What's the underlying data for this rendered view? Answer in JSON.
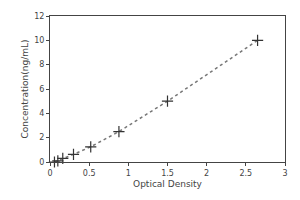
{
  "chart_data": {
    "type": "line",
    "xlabel": "Optical Density",
    "ylabel": "Concentration(ng/mL)",
    "x": [
      0.057,
      0.1,
      0.163,
      0.3,
      0.52,
      0.88,
      1.5,
      2.65
    ],
    "series": [
      {
        "type": "line",
        "color": "#777777",
        "line_style": "dotted",
        "values": [
          0.0,
          0.1,
          0.3,
          0.625,
          1.25,
          2.5,
          5.0,
          10.0
        ]
      },
      {
        "type": "scatter",
        "color": "#333333",
        "marker": "+",
        "values": [
          0.0,
          0.1,
          0.3,
          0.625,
          1.25,
          2.5,
          5.0,
          10.0
        ]
      }
    ],
    "xlim": [
      0,
      3
    ],
    "ylim": [
      0,
      12
    ],
    "xticks": [
      0,
      0.5,
      1,
      1.5,
      2,
      2.5,
      3
    ],
    "yticks": [
      0,
      2,
      4,
      6,
      8,
      10,
      12
    ],
    "grid": false
  }
}
